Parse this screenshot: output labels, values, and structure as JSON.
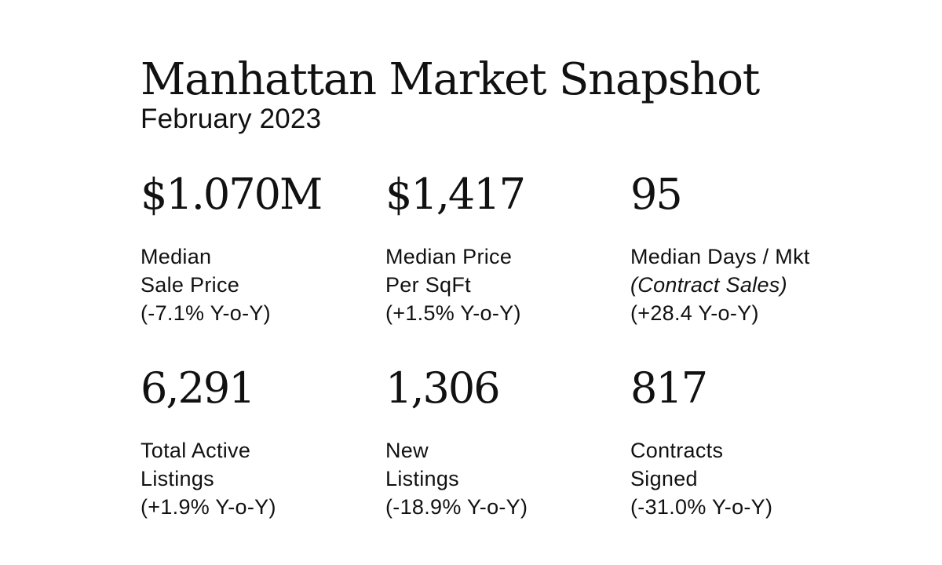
{
  "header": {
    "title": "Manhattan Market Snapshot",
    "subtitle": "February 2023"
  },
  "stats": [
    {
      "value": "$1.070M",
      "line1": "Median",
      "line2": "Sale Price",
      "line3": "(-7.1% Y-o-Y)"
    },
    {
      "value": "$1,417",
      "line1": "Median Price",
      "line2": "Per SqFt",
      "line3": "(+1.5% Y-o-Y)"
    },
    {
      "value": "95",
      "line1": "Median Days / Mkt",
      "line2": "(Contract Sales)",
      "line3": "(+28.4 Y-o-Y)"
    },
    {
      "value": "6,291",
      "line1": "Total Active",
      "line2": "Listings",
      "line3": "(+1.9% Y-o-Y)"
    },
    {
      "value": "1,306",
      "line1": "New",
      "line2": "Listings",
      "line3": "(-18.9% Y-o-Y)"
    },
    {
      "value": "817",
      "line1": "Contracts",
      "line2": "Signed",
      "line3": "(-31.0% Y-o-Y)"
    }
  ]
}
